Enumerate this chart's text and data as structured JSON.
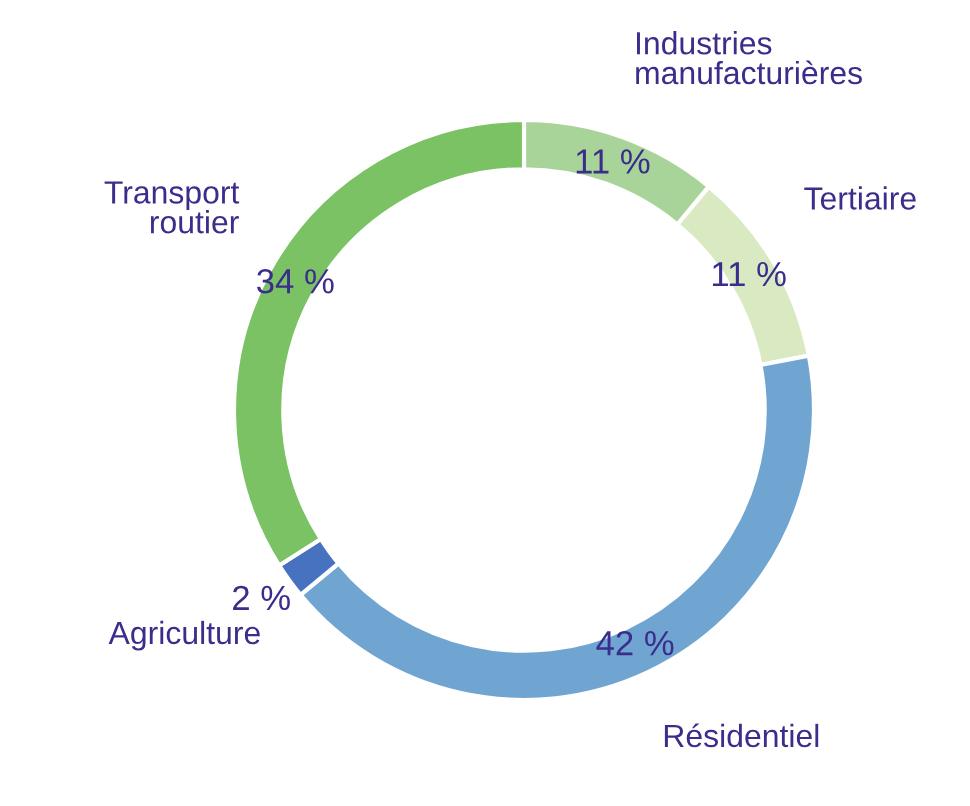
{
  "chart_data": {
    "type": "donut",
    "categories": [
      "Industries\nmanufacturières",
      "Tertiaire",
      "Résidentiel",
      "Agriculture",
      "Transport\nroutier"
    ],
    "values": [
      11,
      11,
      42,
      2,
      34
    ],
    "value_labels": [
      "11 %",
      "11 %",
      "42 %",
      "2 %",
      "34 %"
    ],
    "colors": [
      "#a9d499",
      "#d9eac3",
      "#70a5d1",
      "#4672c0",
      "#7ac263"
    ],
    "legend": false
  }
}
